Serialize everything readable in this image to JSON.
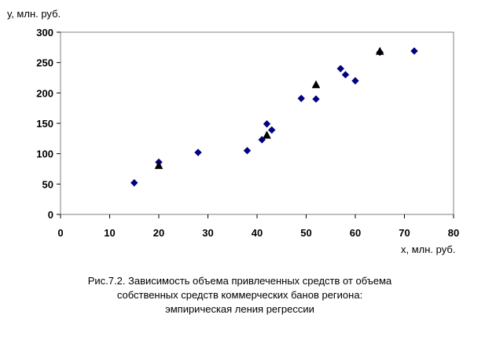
{
  "chart_data": {
    "type": "scatter",
    "ylabel": "у, млн. руб.",
    "xlabel": "х, млн. руб.",
    "xlim": [
      0,
      80
    ],
    "ylim": [
      0,
      300
    ],
    "xticks": [
      0,
      10,
      20,
      30,
      40,
      50,
      60,
      70,
      80
    ],
    "yticks": [
      0,
      50,
      100,
      150,
      200,
      250,
      300
    ],
    "grid": false,
    "series": [
      {
        "marker": "diamond",
        "color": "#000080",
        "points": [
          {
            "x": 15,
            "y": 52
          },
          {
            "x": 20,
            "y": 86
          },
          {
            "x": 28,
            "y": 102
          },
          {
            "x": 38,
            "y": 105
          },
          {
            "x": 41,
            "y": 123
          },
          {
            "x": 42,
            "y": 149
          },
          {
            "x": 43,
            "y": 139
          },
          {
            "x": 49,
            "y": 191
          },
          {
            "x": 52,
            "y": 190
          },
          {
            "x": 57,
            "y": 240
          },
          {
            "x": 58,
            "y": 230
          },
          {
            "x": 60,
            "y": 220
          },
          {
            "x": 65,
            "y": 267
          },
          {
            "x": 72,
            "y": 269
          }
        ]
      },
      {
        "marker": "triangle",
        "color": "#000000",
        "points": [
          {
            "x": 20,
            "y": 80
          },
          {
            "x": 42,
            "y": 130
          },
          {
            "x": 52,
            "y": 213
          },
          {
            "x": 65,
            "y": 268
          }
        ]
      }
    ]
  },
  "caption": {
    "line1": "Рис.7.2. Зависимость объема привлеченных средств от объема",
    "line2": "собственных средств коммерческих банов региона:",
    "line3": "эмпирическая ления регрессии"
  }
}
